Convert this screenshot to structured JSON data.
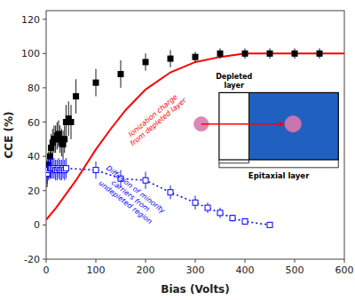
{
  "chart_data": {
    "type": "scatter",
    "title": "",
    "xlabel": "Bias (Volts)",
    "ylabel": "CCE (%)",
    "xlim": [
      0,
      600
    ],
    "ylim": [
      -20,
      125
    ],
    "xticks": [
      0,
      100,
      200,
      300,
      400,
      500,
      600
    ],
    "yticks": [
      -20,
      0,
      20,
      40,
      60,
      80,
      100,
      120
    ],
    "series": [
      {
        "type": "scatter",
        "color": "black",
        "marker": "square",
        "x": [
          2,
          5,
          8,
          10,
          13,
          16,
          19,
          22,
          25,
          28,
          31,
          34,
          37,
          40,
          45,
          50,
          60,
          100,
          150,
          200,
          250,
          300,
          350,
          400,
          450,
          500,
          550
        ],
        "values": [
          30,
          35,
          40,
          45,
          48,
          50,
          50,
          52,
          53,
          50,
          48,
          47,
          50,
          60,
          62,
          60,
          75,
          83,
          88,
          95,
          97,
          98,
          100,
          100,
          100,
          100,
          100
        ],
        "errors": [
          8,
          8,
          8,
          8,
          8,
          8,
          8,
          8,
          8,
          8,
          8,
          8,
          8,
          10,
          10,
          10,
          10,
          8,
          8,
          5,
          5,
          3,
          3,
          3,
          3,
          3,
          3
        ]
      },
      {
        "type": "line",
        "color": "blue",
        "marker": "square-open",
        "line_style": "dotted",
        "x": [
          2,
          5,
          8,
          10,
          13,
          16,
          19,
          22,
          25,
          28,
          31,
          34,
          37,
          40,
          100,
          150,
          200,
          250,
          300,
          325,
          350,
          375,
          400,
          450
        ],
        "values": [
          30,
          32,
          33,
          33,
          33,
          33,
          32,
          32,
          33,
          32,
          32,
          33,
          32,
          33,
          32,
          27,
          26,
          19,
          13,
          10,
          7,
          4,
          2,
          0
        ],
        "errors": [
          6,
          6,
          6,
          6,
          6,
          6,
          6,
          6,
          6,
          6,
          6,
          6,
          6,
          6,
          5,
          5,
          5,
          4,
          4,
          3,
          3,
          2,
          1,
          1
        ]
      },
      {
        "type": "line",
        "color": "red",
        "line_style": "solid",
        "x": [
          0,
          20,
          40,
          60,
          80,
          100,
          130,
          160,
          200,
          250,
          300,
          350,
          400,
          450,
          500,
          550,
          600
        ],
        "values": [
          3,
          10,
          18,
          26,
          35,
          44,
          56,
          67,
          79,
          89,
          95,
          98,
          100,
          100,
          100,
          100,
          100
        ]
      }
    ],
    "annotations": [
      {
        "text": "Ionization charge\nfrom depleted layer",
        "x": 220,
        "y": 62,
        "color": "red"
      },
      {
        "text": "Diffusion of minority\ncarriers from\nundepleted region",
        "x": 170,
        "y": 17,
        "color": "blue"
      },
      {
        "text": "Depleted\nlayer",
        "color": "black"
      },
      {
        "text": "Epitaxial layer",
        "color": "black"
      }
    ]
  }
}
